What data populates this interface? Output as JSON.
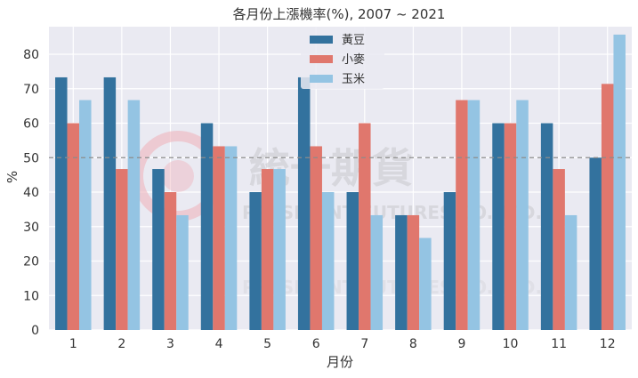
{
  "chart_data": {
    "type": "bar",
    "title": "各月份上漲機率(%), 2007 ~ 2021",
    "xlabel": "月份",
    "ylabel": "%",
    "categories": [
      "1",
      "2",
      "3",
      "4",
      "5",
      "6",
      "7",
      "8",
      "9",
      "10",
      "11",
      "12"
    ],
    "series": [
      {
        "name": "黃豆",
        "color": "#33729e",
        "values": [
          73.3,
          73.3,
          46.7,
          60.0,
          40.0,
          73.3,
          40.0,
          33.3,
          40.0,
          60.0,
          60.0,
          50.0
        ]
      },
      {
        "name": "小麥",
        "color": "#e0776d",
        "values": [
          60.0,
          46.7,
          40.0,
          53.3,
          46.7,
          53.3,
          60.0,
          33.3,
          66.7,
          60.0,
          46.7,
          71.4
        ]
      },
      {
        "name": "玉米",
        "color": "#94c4e3",
        "values": [
          66.7,
          66.7,
          33.3,
          53.3,
          46.7,
          40.0,
          33.3,
          26.7,
          66.7,
          66.7,
          33.3,
          85.7
        ]
      }
    ],
    "ylim": [
      0,
      88
    ],
    "yticks": [
      0,
      10,
      20,
      30,
      40,
      50,
      60,
      70,
      80
    ],
    "reference_line": 50,
    "grid": true,
    "legend_position": "top-center",
    "background_color": "#eaeaf2"
  },
  "watermark": {
    "name_cn": "統一期貨",
    "name_en": "PRESIDENT FUTURES CO.,LTD."
  }
}
